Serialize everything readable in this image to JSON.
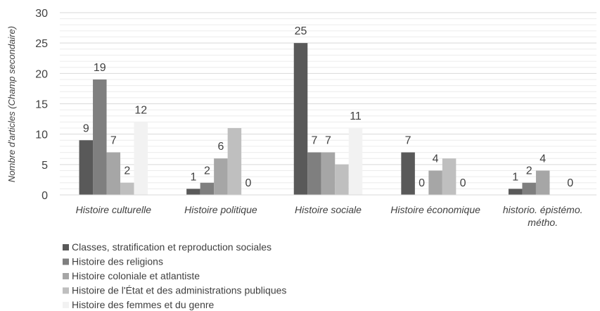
{
  "chart_data": {
    "type": "bar",
    "ylabel": "Nombre d'articles (Champ secondaire)",
    "ylim": [
      0,
      30
    ],
    "y_ticks": [
      0,
      5,
      10,
      15,
      20,
      25,
      30
    ],
    "grid": "horizontal",
    "legend_position": "bottom-left",
    "categories": [
      [
        "Histoire culturelle"
      ],
      [
        "Histoire politique"
      ],
      [
        "Histoire sociale"
      ],
      [
        "Histoire économique"
      ],
      [
        "historio. épistémo.",
        "métho."
      ]
    ],
    "series": [
      {
        "name": "Classes, stratification et reproduction sociales",
        "color": "#595959",
        "values": [
          9,
          1,
          25,
          7,
          1
        ]
      },
      {
        "name": "Histoire des religions",
        "color": "#7f7f7f",
        "values": [
          19,
          2,
          7,
          0,
          2
        ]
      },
      {
        "name": "Histoire coloniale et atlantiste",
        "color": "#a6a6a6",
        "values": [
          7,
          6,
          7,
          4,
          4
        ]
      },
      {
        "name": "Histoire de l'État et des administrations publiques",
        "color": "#bfbfbf",
        "values": [
          2,
          11,
          5,
          6,
          null
        ]
      },
      {
        "name": "Histoire des femmes et du genre",
        "color": "#f2f2f2",
        "values": [
          12,
          0,
          11,
          0,
          0
        ]
      }
    ],
    "data_labels": [
      [
        9,
        19,
        7,
        2,
        12
      ],
      [
        1,
        2,
        6,
        null,
        0
      ],
      [
        25,
        7,
        7,
        null,
        11
      ],
      [
        7,
        0,
        4,
        null,
        0
      ],
      [
        1,
        2,
        4,
        null,
        0
      ]
    ]
  }
}
